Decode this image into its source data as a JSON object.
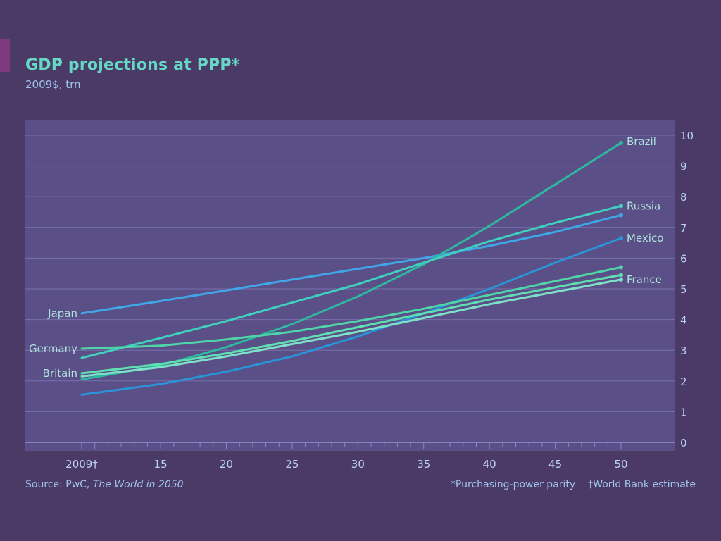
{
  "chart_data": {
    "type": "line",
    "title": "GDP projections at PPP*",
    "subtitle": "2009$, trn",
    "x": [
      2009,
      2015,
      2020,
      2025,
      2030,
      2035,
      2040,
      2045,
      2050
    ],
    "x_tick_labels": [
      "2009†",
      "15",
      "20",
      "25",
      "30",
      "35",
      "40",
      "45",
      "50"
    ],
    "y_ticks": [
      "0",
      "1",
      "2",
      "3",
      "4",
      "5",
      "6",
      "7",
      "8",
      "9",
      "10"
    ],
    "xlim": [
      2009,
      2050
    ],
    "ylim": [
      0,
      10
    ],
    "grid": true,
    "y_axis_side": "right",
    "series": [
      {
        "name": "Japan",
        "label_side": "left",
        "color": "#3fa7e8",
        "values": [
          4.2,
          4.6,
          4.95,
          5.3,
          5.65,
          6.0,
          6.4,
          6.85,
          7.4
        ]
      },
      {
        "name": "Brazil",
        "label_side": "right",
        "color": "#2fb8a0",
        "values": [
          2.05,
          2.5,
          3.1,
          3.85,
          4.75,
          5.8,
          7.05,
          8.4,
          9.75
        ]
      },
      {
        "name": "Russia",
        "label_side": "right",
        "color": "#3fd0c0",
        "values": [
          2.75,
          3.4,
          3.95,
          4.55,
          5.15,
          5.85,
          6.55,
          7.15,
          7.7
        ]
      },
      {
        "name": "Mexico",
        "label_side": "right",
        "color": "#2a94d8",
        "values": [
          1.55,
          1.9,
          2.3,
          2.8,
          3.45,
          4.2,
          5.0,
          5.85,
          6.65
        ]
      },
      {
        "name": "Germany",
        "label_side": "left",
        "color": "#4fd6a8",
        "values": [
          3.05,
          3.15,
          3.35,
          3.6,
          3.95,
          4.35,
          4.8,
          5.25,
          5.7
        ]
      },
      {
        "name": "Britain",
        "label_side": "left",
        "color": "#5fe0b0",
        "values": [
          2.25,
          2.55,
          2.9,
          3.3,
          3.75,
          4.2,
          4.65,
          5.05,
          5.45
        ]
      },
      {
        "name": "France",
        "label_side": "right",
        "color": "#7fe0c8",
        "values": [
          2.15,
          2.45,
          2.8,
          3.2,
          3.6,
          4.05,
          4.5,
          4.9,
          5.3
        ]
      }
    ]
  },
  "footer": {
    "source_prefix": "Source: PwC, ",
    "source_title": "The World in 2050",
    "note_ppp": "*Purchasing-power parity",
    "note_wb": "†World Bank estimate"
  },
  "colors": {
    "background": "#4b3a66",
    "plot_background": "#5a4f86",
    "gridline": "#8d86c8",
    "axis_text": "#bcd4f4",
    "label_text": "#aee2dc"
  }
}
